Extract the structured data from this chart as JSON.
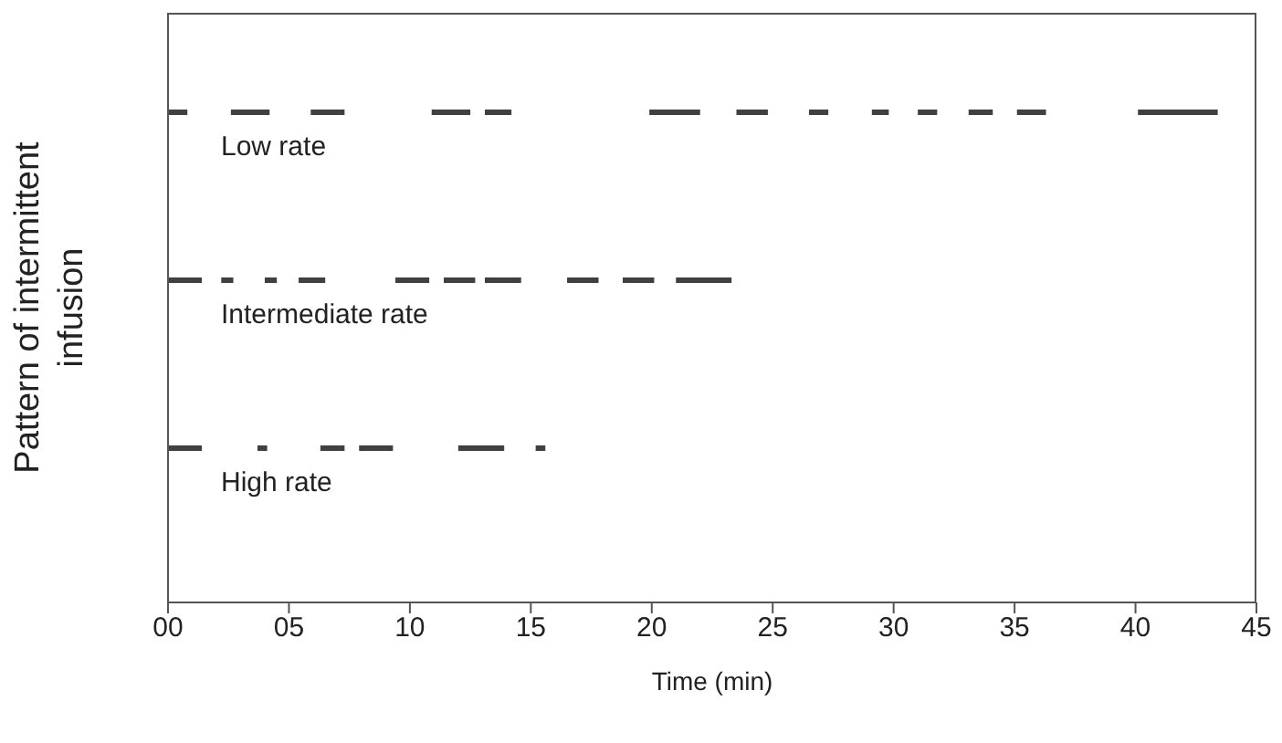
{
  "chart_data": {
    "type": "bar",
    "orientation": "horizontal",
    "xlabel": "Time (min)",
    "ylabel": "Pattern of intermittent infusion",
    "categories": [
      "Low rate",
      "Intermediate rate",
      "High rate"
    ],
    "xlim": [
      0,
      45
    ],
    "xticks": [
      {
        "value": 0,
        "label": "00"
      },
      {
        "value": 5,
        "label": "05"
      },
      {
        "value": 10,
        "label": "10"
      },
      {
        "value": 15,
        "label": "15"
      },
      {
        "value": 20,
        "label": "20"
      },
      {
        "value": 25,
        "label": "25"
      },
      {
        "value": 30,
        "label": "30"
      },
      {
        "value": 35,
        "label": "35"
      },
      {
        "value": 40,
        "label": "40"
      },
      {
        "value": 45,
        "label": "45"
      }
    ],
    "series": [
      {
        "color": "#404040",
        "values": [
          0.8,
          1.4,
          1.4
        ],
        "base": [
          0,
          0,
          0
        ]
      },
      {
        "color": "#404040",
        "values": [
          1.6,
          0.5,
          0.4
        ],
        "base": [
          2.6,
          2.2,
          3.7
        ]
      },
      {
        "color": "#404040",
        "values": [
          1.4,
          0.5,
          1.0
        ],
        "base": [
          5.9,
          4.0,
          6.3
        ]
      },
      {
        "color": "#404040",
        "values": [
          1.6,
          1.1,
          1.4
        ],
        "base": [
          10.9,
          5.4,
          7.9
        ]
      },
      {
        "color": "#404040",
        "values": [
          1.1,
          1.4,
          1.9
        ],
        "base": [
          13.1,
          9.4,
          12.0
        ]
      },
      {
        "color": "#404040",
        "values": [
          2.1,
          1.3,
          0.4
        ],
        "base": [
          19.9,
          11.4,
          15.2
        ]
      },
      {
        "color": "#404040",
        "values": [
          1.3,
          1.5,
          null
        ],
        "base": [
          23.5,
          13.1,
          null
        ]
      },
      {
        "color": "#404040",
        "values": [
          0.8,
          1.3,
          null
        ],
        "base": [
          26.5,
          16.5,
          null
        ]
      },
      {
        "color": "#404040",
        "values": [
          0.7,
          1.3,
          null
        ],
        "base": [
          29.1,
          18.8,
          null
        ]
      },
      {
        "color": "#404040",
        "values": [
          0.8,
          2.3,
          null
        ],
        "base": [
          31.0,
          21.0,
          null
        ]
      },
      {
        "color": "#404040",
        "values": [
          1.0,
          null,
          null
        ],
        "base": [
          33.1,
          null,
          null
        ]
      },
      {
        "color": "#404040",
        "values": [
          1.2,
          null,
          null
        ],
        "base": [
          35.1,
          null,
          null
        ]
      },
      {
        "color": "#404040",
        "values": [
          3.3,
          null,
          null
        ],
        "base": [
          40.1,
          null,
          null
        ]
      }
    ]
  }
}
